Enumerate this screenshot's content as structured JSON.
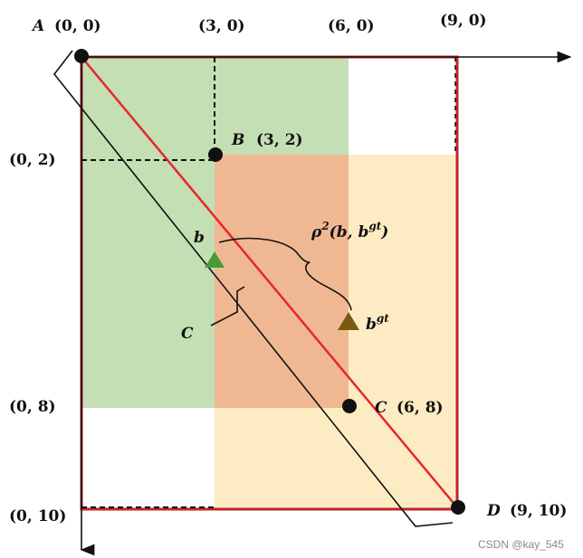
{
  "points": {
    "A": {
      "name": "A",
      "coord": "(0, 0)"
    },
    "B": {
      "name": "B",
      "coord": "(3, 2)"
    },
    "C": {
      "name": "C",
      "coord": "(6, 8)"
    },
    "D": {
      "name": "D",
      "coord": "(9, 10)"
    }
  },
  "axis_labels": {
    "x3": "(3, 0)",
    "x6": "(6, 0)",
    "x9": "(9, 0)",
    "y2": "(0, 2)",
    "y8": "(0, 8)",
    "y10": "(0, 10)"
  },
  "centers": {
    "pred": "b",
    "gt_base": "b",
    "gt_sup": "gt"
  },
  "distance": {
    "rho": "ρ",
    "exp": "2",
    "args_open": "(b, b",
    "args_sup": "gt",
    "args_close": ")"
  },
  "diagonal_label": "C",
  "colors": {
    "green_box": "#b9d9a6",
    "yellow_box": "#fde9b8",
    "overlap": "#f0b892",
    "frame": "#c0262a",
    "diagonal": "#e8262a",
    "pred_center": "#4a9a3a",
    "gt_center": "#7a5a10"
  },
  "watermark": "CSDN @kay_545"
}
